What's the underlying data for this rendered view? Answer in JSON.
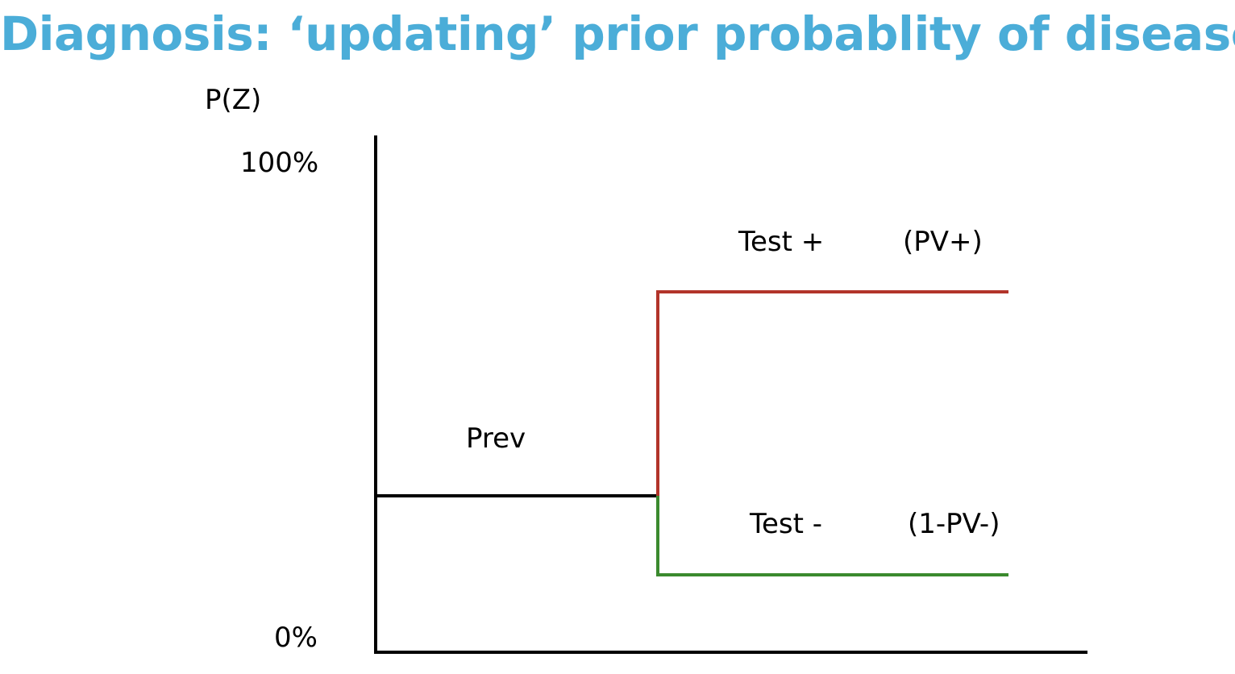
{
  "title": "Diagnosis: ‘updating’ prior probablity of disease",
  "colors": {
    "title": "#4badd8",
    "axis": "#000000",
    "prior_line": "#000000",
    "test_positive": "#b2342a",
    "test_negative": "#3b8a2e"
  },
  "axis": {
    "y_label": "P(Z)",
    "y_max_label": "100%",
    "y_min_label": "0%"
  },
  "prior": {
    "label": "Prev"
  },
  "test_positive": {
    "label": "Test +",
    "value_label": "(PV+)"
  },
  "test_negative": {
    "label": "Test -",
    "value_label": "(1-PV-)"
  }
}
